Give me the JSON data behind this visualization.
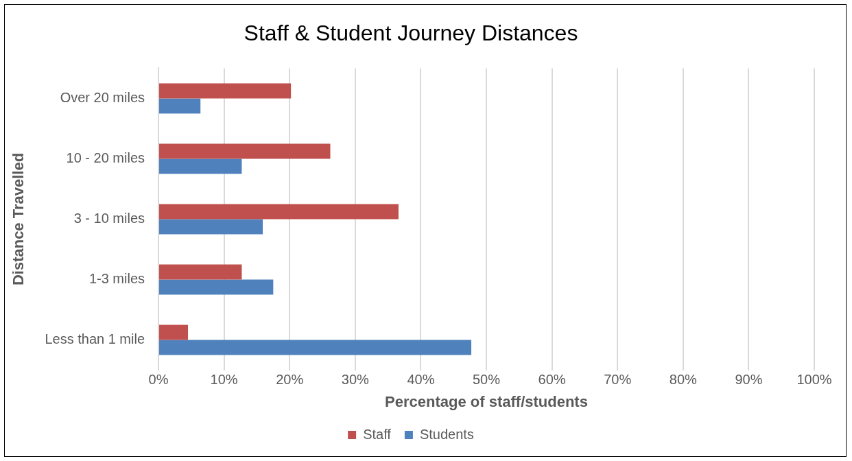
{
  "chart_data": {
    "type": "bar",
    "orientation": "horizontal",
    "title": "Staff & Student Journey Distances",
    "xlabel": "Percentage of staff/students",
    "ylabel": "Distance Travelled",
    "categories": [
      "Over 20 miles",
      "10 - 20 miles",
      "3 - 10 miles",
      "1-3 miles",
      "Less than 1 mile"
    ],
    "series": [
      {
        "name": "Staff",
        "color": "#c0504d",
        "values": [
          20.2,
          26.2,
          36.6,
          12.7,
          4.5
        ]
      },
      {
        "name": "Students",
        "color": "#4f81bd",
        "values": [
          6.4,
          12.7,
          15.9,
          17.5,
          47.7
        ]
      }
    ],
    "xlim": [
      0,
      100
    ],
    "xticks": [
      {
        "value": 0,
        "label": "0%"
      },
      {
        "value": 10,
        "label": "10%"
      },
      {
        "value": 20,
        "label": "20%"
      },
      {
        "value": 30,
        "label": "30%"
      },
      {
        "value": 40,
        "label": "40%"
      },
      {
        "value": 50,
        "label": "50%"
      },
      {
        "value": 60,
        "label": "60%"
      },
      {
        "value": 70,
        "label": "70%"
      },
      {
        "value": 80,
        "label": "80%"
      },
      {
        "value": 90,
        "label": "90%"
      },
      {
        "value": 100,
        "label": "100%"
      }
    ],
    "grid": "x",
    "legend": "bottom"
  }
}
